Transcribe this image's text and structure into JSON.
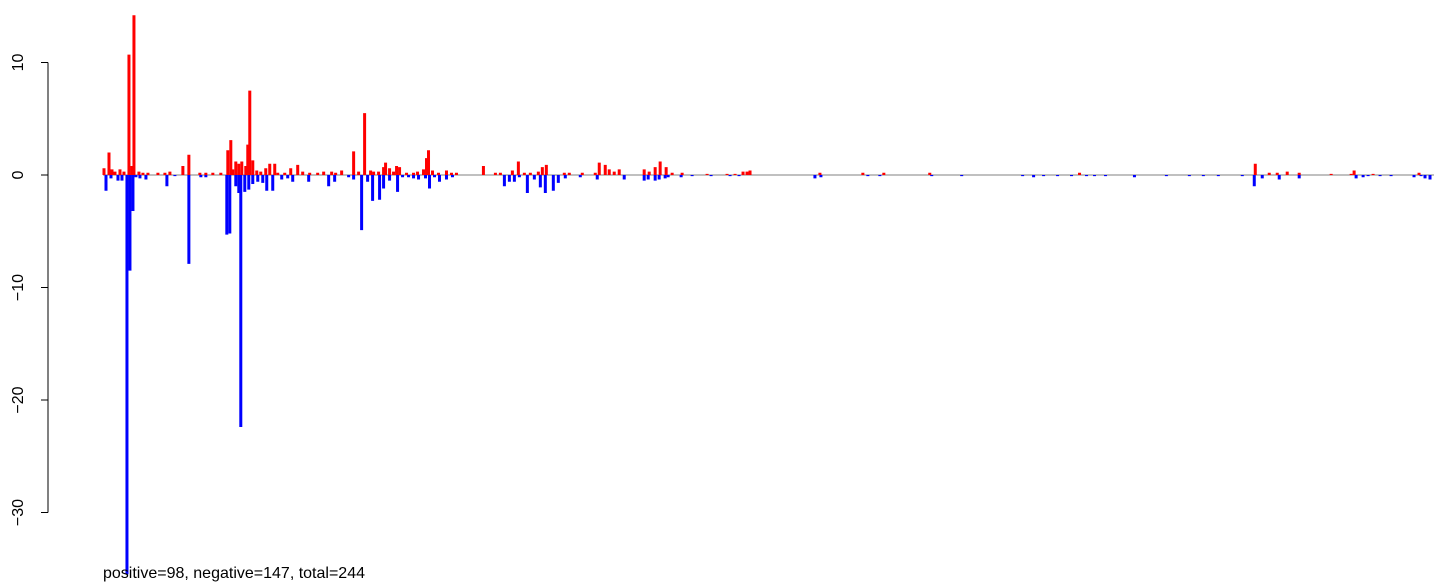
{
  "chart_data": {
    "type": "bar",
    "title": "",
    "xlabel": "",
    "ylabel": "",
    "ylim": [
      -35.5,
      14.5
    ],
    "yticks": [
      -30,
      -20,
      -10,
      0,
      10
    ],
    "ytick_labels": [
      "−30",
      "−20",
      "−10",
      "0",
      "10"
    ],
    "xlim": [
      0,
      1333
    ],
    "baseline": 0,
    "colors": {
      "positive": "#ff0000",
      "negative": "#0000ff",
      "baseline": "#808080"
    },
    "positive": [
      [
        1,
        0.6
      ],
      [
        6,
        2.0
      ],
      [
        9,
        0.5
      ],
      [
        12,
        0.3
      ],
      [
        17,
        0.5
      ],
      [
        21,
        0.3
      ],
      [
        26,
        10.7
      ],
      [
        29,
        0.8
      ],
      [
        31,
        14.2
      ],
      [
        36,
        0.3
      ],
      [
        40,
        0.2
      ],
      [
        45,
        0.2
      ],
      [
        55,
        0.2
      ],
      [
        62,
        0.2
      ],
      [
        67,
        0.3
      ],
      [
        80,
        0.8
      ],
      [
        86,
        1.8
      ],
      [
        97,
        0.2
      ],
      [
        103,
        0.2
      ],
      [
        110,
        0.2
      ],
      [
        118,
        0.2
      ],
      [
        125,
        2.2
      ],
      [
        128,
        3.1
      ],
      [
        130,
        0.5
      ],
      [
        133,
        1.2
      ],
      [
        136,
        1.0
      ],
      [
        139,
        1.2
      ],
      [
        143,
        0.8
      ],
      [
        145,
        2.7
      ],
      [
        147,
        7.5
      ],
      [
        150,
        1.3
      ],
      [
        154,
        0.4
      ],
      [
        158,
        0.3
      ],
      [
        163,
        0.6
      ],
      [
        167,
        1.0
      ],
      [
        172,
        1.0
      ],
      [
        175,
        0.2
      ],
      [
        182,
        0.2
      ],
      [
        188,
        0.6
      ],
      [
        195,
        0.9
      ],
      [
        200,
        0.3
      ],
      [
        207,
        0.2
      ],
      [
        215,
        0.2
      ],
      [
        221,
        0.3
      ],
      [
        229,
        0.3
      ],
      [
        233,
        0.2
      ],
      [
        239,
        0.4
      ],
      [
        251,
        2.1
      ],
      [
        256,
        0.3
      ],
      [
        262,
        5.5
      ],
      [
        268,
        0.4
      ],
      [
        271,
        0.3
      ],
      [
        276,
        0.3
      ],
      [
        281,
        0.7
      ],
      [
        283,
        1.1
      ],
      [
        287,
        0.6
      ],
      [
        291,
        0.3
      ],
      [
        294,
        0.8
      ],
      [
        297,
        0.7
      ],
      [
        304,
        0.2
      ],
      [
        311,
        0.2
      ],
      [
        315,
        0.3
      ],
      [
        321,
        0.5
      ],
      [
        324,
        1.5
      ],
      [
        326,
        2.2
      ],
      [
        330,
        0.4
      ],
      [
        336,
        0.2
      ],
      [
        344,
        0.4
      ],
      [
        349,
        0.2
      ],
      [
        354,
        0.2
      ],
      [
        381,
        0.8
      ],
      [
        393,
        0.2
      ],
      [
        398,
        0.2
      ],
      [
        410,
        0.4
      ],
      [
        416,
        1.2
      ],
      [
        422,
        0.2
      ],
      [
        428,
        0.2
      ],
      [
        436,
        0.3
      ],
      [
        440,
        0.7
      ],
      [
        444,
        0.9
      ],
      [
        462,
        0.2
      ],
      [
        467,
        0.2
      ],
      [
        480,
        0.2
      ],
      [
        493,
        0.2
      ],
      [
        497,
        1.1
      ],
      [
        503,
        0.9
      ],
      [
        507,
        0.5
      ],
      [
        512,
        0.3
      ],
      [
        517,
        0.5
      ],
      [
        542,
        0.5
      ],
      [
        547,
        0.3
      ],
      [
        553,
        0.7
      ],
      [
        558,
        1.2
      ],
      [
        564,
        0.7
      ],
      [
        570,
        0.2
      ],
      [
        580,
        0.2
      ],
      [
        605,
        0.1
      ],
      [
        625,
        0.1
      ],
      [
        633,
        0.1
      ],
      [
        641,
        0.3
      ],
      [
        645,
        0.3
      ],
      [
        648,
        0.4
      ],
      [
        718,
        0.2
      ],
      [
        761,
        0.2
      ],
      [
        782,
        0.2
      ],
      [
        828,
        0.2
      ],
      [
        978,
        0.2
      ],
      [
        1154,
        1.0
      ],
      [
        1168,
        0.2
      ],
      [
        1176,
        0.2
      ],
      [
        1186,
        0.3
      ],
      [
        1198,
        0.2
      ],
      [
        1230,
        0.1
      ],
      [
        1250,
        0.1
      ],
      [
        1253,
        0.4
      ],
      [
        1272,
        0.1
      ],
      [
        1318,
        0.2
      ]
    ],
    "negative": [
      [
        3,
        -1.4
      ],
      [
        8,
        -0.3
      ],
      [
        15,
        -0.5
      ],
      [
        19,
        -0.5
      ],
      [
        24,
        -35.5
      ],
      [
        27,
        -8.5
      ],
      [
        30,
        -3.2
      ],
      [
        33,
        -0.2
      ],
      [
        37,
        -0.3
      ],
      [
        43,
        -0.4
      ],
      [
        64,
        -1.0
      ],
      [
        72,
        -0.1
      ],
      [
        86,
        -7.9
      ],
      [
        98,
        -0.2
      ],
      [
        103,
        -0.2
      ],
      [
        124,
        -5.3
      ],
      [
        127,
        -5.2
      ],
      [
        133,
        -1.0
      ],
      [
        136,
        -1.6
      ],
      [
        138,
        -22.4
      ],
      [
        142,
        -1.5
      ],
      [
        146,
        -1.3
      ],
      [
        150,
        -0.8
      ],
      [
        155,
        -0.6
      ],
      [
        160,
        -0.7
      ],
      [
        164,
        -1.4
      ],
      [
        170,
        -1.4
      ],
      [
        179,
        -0.4
      ],
      [
        185,
        -0.3
      ],
      [
        190,
        -0.6
      ],
      [
        206,
        -0.6
      ],
      [
        226,
        -1.0
      ],
      [
        232,
        -0.6
      ],
      [
        246,
        -0.2
      ],
      [
        251,
        -0.4
      ],
      [
        259,
        -4.9
      ],
      [
        265,
        -0.6
      ],
      [
        270,
        -2.3
      ],
      [
        277,
        -2.2
      ],
      [
        281,
        -1.2
      ],
      [
        287,
        -0.5
      ],
      [
        295,
        -1.5
      ],
      [
        300,
        -0.2
      ],
      [
        306,
        -0.2
      ],
      [
        311,
        -0.3
      ],
      [
        316,
        -0.4
      ],
      [
        323,
        -0.3
      ],
      [
        327,
        -1.2
      ],
      [
        332,
        -0.2
      ],
      [
        337,
        -0.6
      ],
      [
        344,
        -0.4
      ],
      [
        350,
        -0.2
      ],
      [
        402,
        -1.0
      ],
      [
        407,
        -0.6
      ],
      [
        412,
        -0.6
      ],
      [
        417,
        -0.2
      ],
      [
        425,
        -1.6
      ],
      [
        432,
        -0.4
      ],
      [
        438,
        -1.1
      ],
      [
        443,
        -1.6
      ],
      [
        451,
        -1.4
      ],
      [
        456,
        -0.7
      ],
      [
        463,
        -0.3
      ],
      [
        478,
        -0.2
      ],
      [
        495,
        -0.4
      ],
      [
        522,
        -0.4
      ],
      [
        542,
        -0.5
      ],
      [
        546,
        -0.4
      ],
      [
        553,
        -0.5
      ],
      [
        557,
        -0.4
      ],
      [
        563,
        -0.3
      ],
      [
        566,
        -0.2
      ],
      [
        579,
        -0.2
      ],
      [
        590,
        -0.1
      ],
      [
        609,
        -0.1
      ],
      [
        628,
        -0.1
      ],
      [
        637,
        -0.1
      ],
      [
        713,
        -0.3
      ],
      [
        719,
        -0.2
      ],
      [
        766,
        -0.1
      ],
      [
        778,
        -0.1
      ],
      [
        830,
        -0.1
      ],
      [
        860,
        -0.1
      ],
      [
        921,
        -0.1
      ],
      [
        932,
        -0.2
      ],
      [
        942,
        -0.1
      ],
      [
        956,
        -0.1
      ],
      [
        970,
        -0.1
      ],
      [
        985,
        -0.1
      ],
      [
        993,
        -0.1
      ],
      [
        1004,
        -0.1
      ],
      [
        1033,
        -0.2
      ],
      [
        1065,
        -0.1
      ],
      [
        1088,
        -0.1
      ],
      [
        1102,
        -0.1
      ],
      [
        1117,
        -0.1
      ],
      [
        1141,
        -0.1
      ],
      [
        1153,
        -1.0
      ],
      [
        1161,
        -0.3
      ],
      [
        1178,
        -0.4
      ],
      [
        1198,
        -0.3
      ],
      [
        1255,
        -0.3
      ],
      [
        1262,
        -0.2
      ],
      [
        1267,
        -0.1
      ],
      [
        1279,
        -0.1
      ],
      [
        1290,
        -0.1
      ],
      [
        1313,
        -0.2
      ],
      [
        1320,
        -0.1
      ],
      [
        1324,
        -0.3
      ],
      [
        1329,
        -0.4
      ]
    ]
  },
  "footer": {
    "text": "positive=98, negative=147, total=244"
  }
}
